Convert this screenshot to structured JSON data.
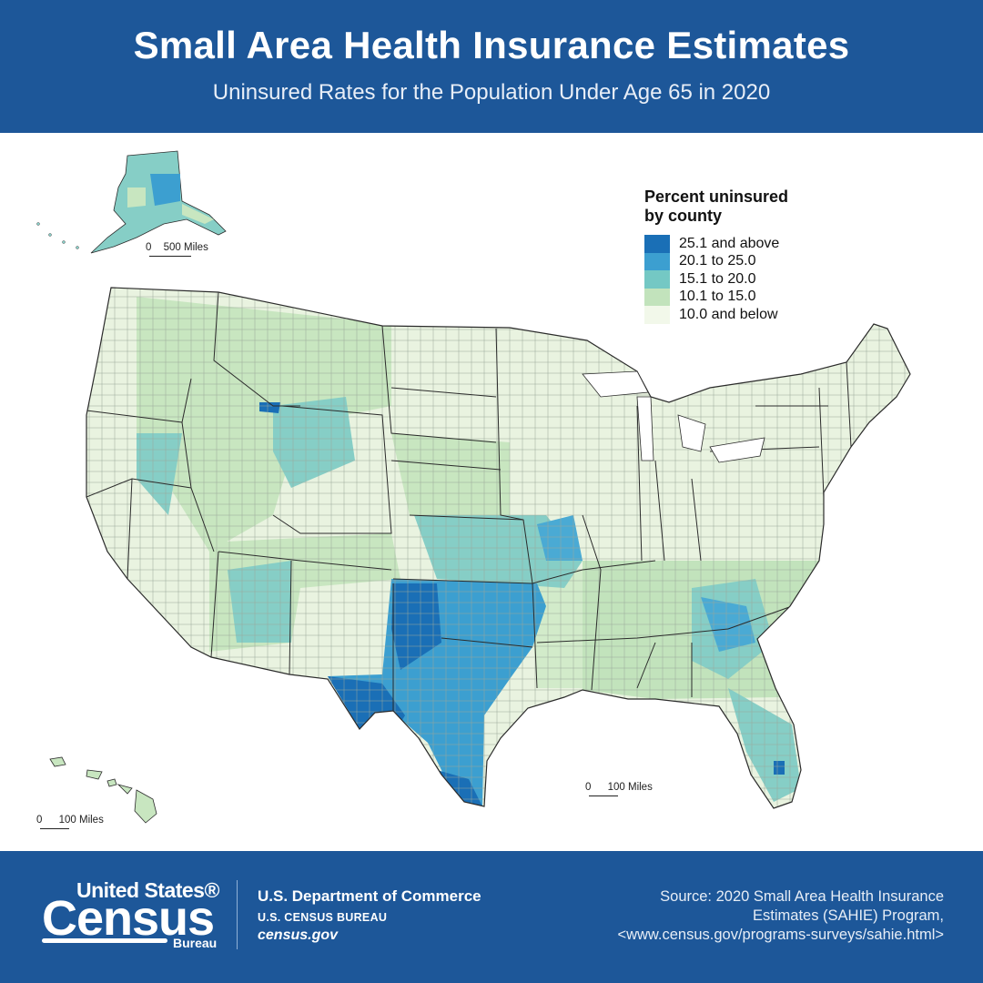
{
  "header": {
    "title": "Small Area Health Insurance Estimates",
    "subtitle": "Uninsured Rates for the Population Under Age 65 in 2020"
  },
  "legend": {
    "title_line1": "Percent uninsured",
    "title_line2": "by county",
    "items": [
      {
        "label": "25.1 and above",
        "color": "#1a6fb6"
      },
      {
        "label": "20.1 to 25.0",
        "color": "#3c9fd0"
      },
      {
        "label": "15.1 to 20.0",
        "color": "#74c8c4"
      },
      {
        "label": "10.1 to 15.0",
        "color": "#c2e3bc"
      },
      {
        "label": "10.0 and below",
        "color": "#f2f8ea"
      }
    ]
  },
  "scales": {
    "alaska": {
      "zero": "0",
      "label": "500 Miles"
    },
    "hawaii": {
      "zero": "0",
      "label": "100 Miles"
    },
    "conus": {
      "zero": "0",
      "label": "100 Miles"
    }
  },
  "footer": {
    "logo_line1": "United States®",
    "logo_line2": "Census",
    "logo_line3": "Bureau",
    "dept_line1": "U.S. Department of Commerce",
    "dept_line2": "U.S. CENSUS BUREAU",
    "dept_line3": "census.gov",
    "source_line1": "Source: 2020 Small Area Health Insurance",
    "source_line2": "Estimates (SAHIE) Program,",
    "source_line3": "<www.census.gov/programs-surveys/sahie.html>"
  },
  "colors": {
    "banner": "#1d5799",
    "border": "#2b2b2b"
  }
}
